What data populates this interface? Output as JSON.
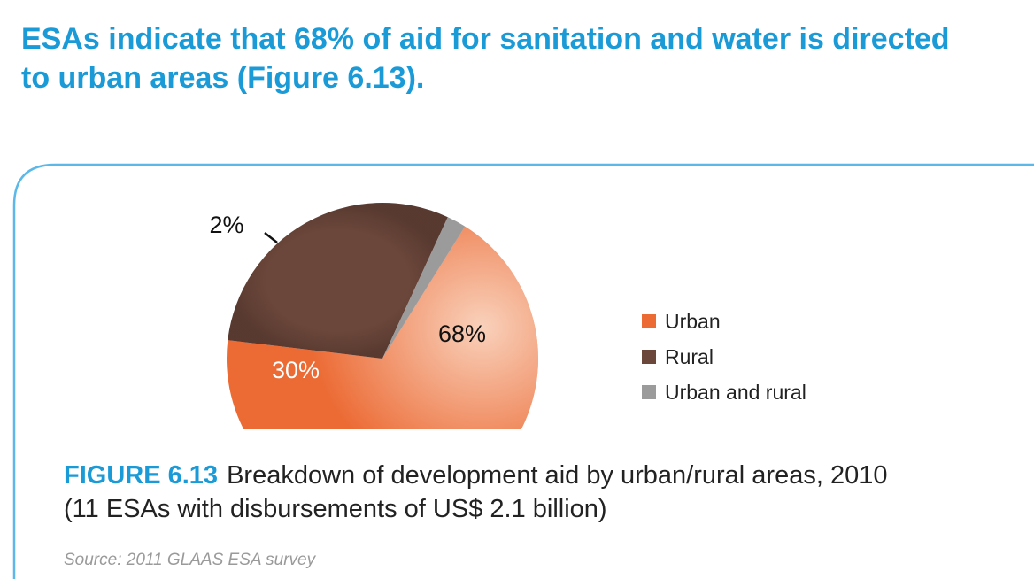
{
  "headline": {
    "line1": "ESAs indicate that 68% of aid for sanitation and water is directed",
    "line2": "to urban areas (Figure 6.13)."
  },
  "chart_data": {
    "type": "pie",
    "categories": [
      "Urban",
      "Rural",
      "Urban and rural"
    ],
    "values": [
      68,
      30,
      2
    ],
    "labels": [
      "68%",
      "30%",
      "2%"
    ],
    "colors": [
      "#ec6b35",
      "#6b463a",
      "#9b9b9b"
    ],
    "legend_position": "right"
  },
  "legend": {
    "items": [
      {
        "label": "Urban",
        "color": "#ec6b35"
      },
      {
        "label": "Rural",
        "color": "#6b463a"
      },
      {
        "label": "Urban and rural",
        "color": "#9b9b9b"
      }
    ]
  },
  "caption": {
    "label": "FIGURE 6.13",
    "text_line1": "Breakdown of development aid by urban/rural areas, 2010",
    "text_line2": "(11 ESAs with disbursements of US$ 2.1 billion)"
  },
  "source": "Source: 2011 GLAAS ESA survey",
  "colors": {
    "accent": "#1a9ad6",
    "panel_border": "#5bb8e8"
  }
}
